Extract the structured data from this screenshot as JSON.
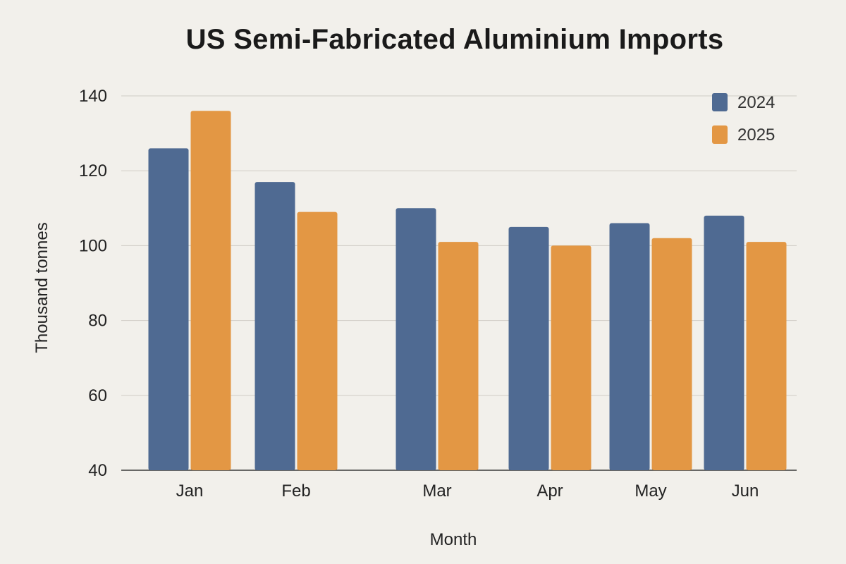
{
  "chart_data": {
    "type": "bar",
    "title": "US Semi-Fabricated Aluminium Imports",
    "xlabel": "Month",
    "ylabel": "Thousand tonnes",
    "categories": [
      "Jan",
      "Feb",
      "Mar",
      "Apr",
      "May",
      "Jun"
    ],
    "series": [
      {
        "name": "2024",
        "color": "#4f6a92",
        "values": [
          126,
          117,
          110,
          105,
          106,
          108
        ]
      },
      {
        "name": "2025",
        "color": "#e39744",
        "values": [
          136,
          109,
          101,
          100,
          102,
          101
        ]
      }
    ],
    "ylim": [
      40,
      140
    ],
    "yticks": [
      40,
      60,
      80,
      100,
      120,
      140
    ],
    "grid": true,
    "legend_position": "top-right"
  }
}
